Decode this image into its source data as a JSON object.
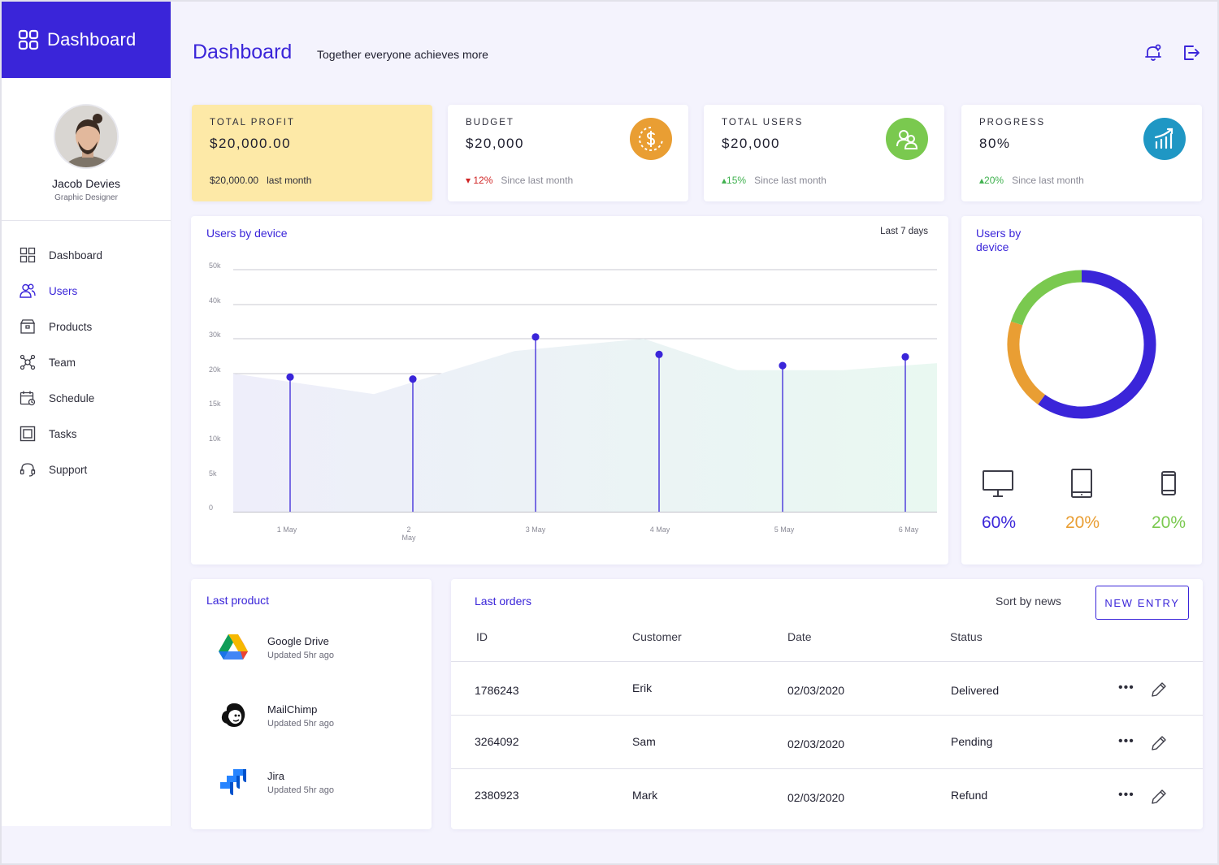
{
  "sidebar": {
    "brand": "Dashboard",
    "profile": {
      "name": "Jacob Devies",
      "role": "Graphic Designer"
    },
    "items": [
      {
        "label": "Dashboard",
        "icon": "grid-icon"
      },
      {
        "label": "Users",
        "icon": "users-icon",
        "active": true
      },
      {
        "label": "Products",
        "icon": "box-icon"
      },
      {
        "label": "Team",
        "icon": "team-icon"
      },
      {
        "label": "Schedule",
        "icon": "calendar-icon"
      },
      {
        "label": "Tasks",
        "icon": "tasks-icon"
      },
      {
        "label": "Support",
        "icon": "headset-icon"
      }
    ]
  },
  "header": {
    "title": "Dashboard",
    "subtitle": "Together everyone achieves more"
  },
  "stats": {
    "profit": {
      "label": "TOTAL PROFIT",
      "value": "$20,000.00",
      "foot_value": "$20,000.00",
      "foot_text": "last month"
    },
    "budget": {
      "label": "BUDGET",
      "value": "$20,000",
      "change": "12%",
      "foot_text": "Since last month"
    },
    "users": {
      "label": "TOTAL USERS",
      "value": "$20,000",
      "change": "15%",
      "foot_text": "Since last month"
    },
    "progress": {
      "label": "PROGRESS",
      "value": "80%",
      "change": "20%",
      "foot_text": "Since last month"
    }
  },
  "colors": {
    "primary": "#3a25d9",
    "orange": "#e99e33",
    "green": "#7ac94f",
    "teal": "#1f97c4",
    "profit_bg": "#fde9a7"
  },
  "line_chart": {
    "title": "Users by device",
    "range": "Last 7 days"
  },
  "donut": {
    "title_line1": "Users by",
    "title_line2": "device",
    "devices": [
      {
        "name": "desktop-icon",
        "pct": "60%"
      },
      {
        "name": "tablet-icon",
        "pct": "20%"
      },
      {
        "name": "phone-icon",
        "pct": "20%"
      }
    ]
  },
  "chart_data": [
    {
      "type": "line",
      "title": "Users by device",
      "x": [
        "1 May",
        "2 May",
        "3 May",
        "4 May",
        "5 May",
        "6 May"
      ],
      "y_ticks": [
        "0",
        "5k",
        "10k",
        "15k",
        "20k",
        "30k",
        "40k",
        "50k"
      ],
      "series": [
        {
          "values": [
            19500,
            19200,
            30500,
            25500,
            22300,
            24800
          ]
        }
      ],
      "area_series": [
        {
          "x": [
            "0.0",
            "1.2",
            "2.4",
            "3.5",
            "4.3",
            "5.2",
            "6.0"
          ],
          "values": [
            20000,
            17000,
            26500,
            30000,
            21000,
            21000,
            23000
          ]
        }
      ],
      "grid": true,
      "legend": "none"
    },
    {
      "type": "pie",
      "title": "Users by device",
      "categories": [
        "Desktop",
        "Tablet",
        "Phone"
      ],
      "values": [
        60,
        20,
        20
      ]
    }
  ],
  "last_product": {
    "title": "Last product",
    "items": [
      {
        "name": "Google Drive",
        "sub": "Updated 5hr ago",
        "icon": "google-drive-icon"
      },
      {
        "name": "MailChimp",
        "sub": "Updated 5hr ago",
        "icon": "mailchimp-icon"
      },
      {
        "name": "Jira",
        "sub": "Updated 5hr ago",
        "icon": "jira-icon"
      }
    ]
  },
  "orders": {
    "title": "Last orders",
    "sort_label": "Sort by news",
    "new_entry": "NEW ENTRY",
    "columns": [
      "ID",
      "Customer",
      "Date",
      "Status"
    ],
    "rows": [
      {
        "id": "1786243",
        "customer": "Erik",
        "date": "02/03/2020",
        "status": "Delivered"
      },
      {
        "id": "3264092",
        "customer": "Sam",
        "date": "02/03/2020",
        "status": "Pending"
      },
      {
        "id": "2380923",
        "customer": "Mark",
        "date": "02/03/2020",
        "status": "Refund"
      }
    ]
  }
}
